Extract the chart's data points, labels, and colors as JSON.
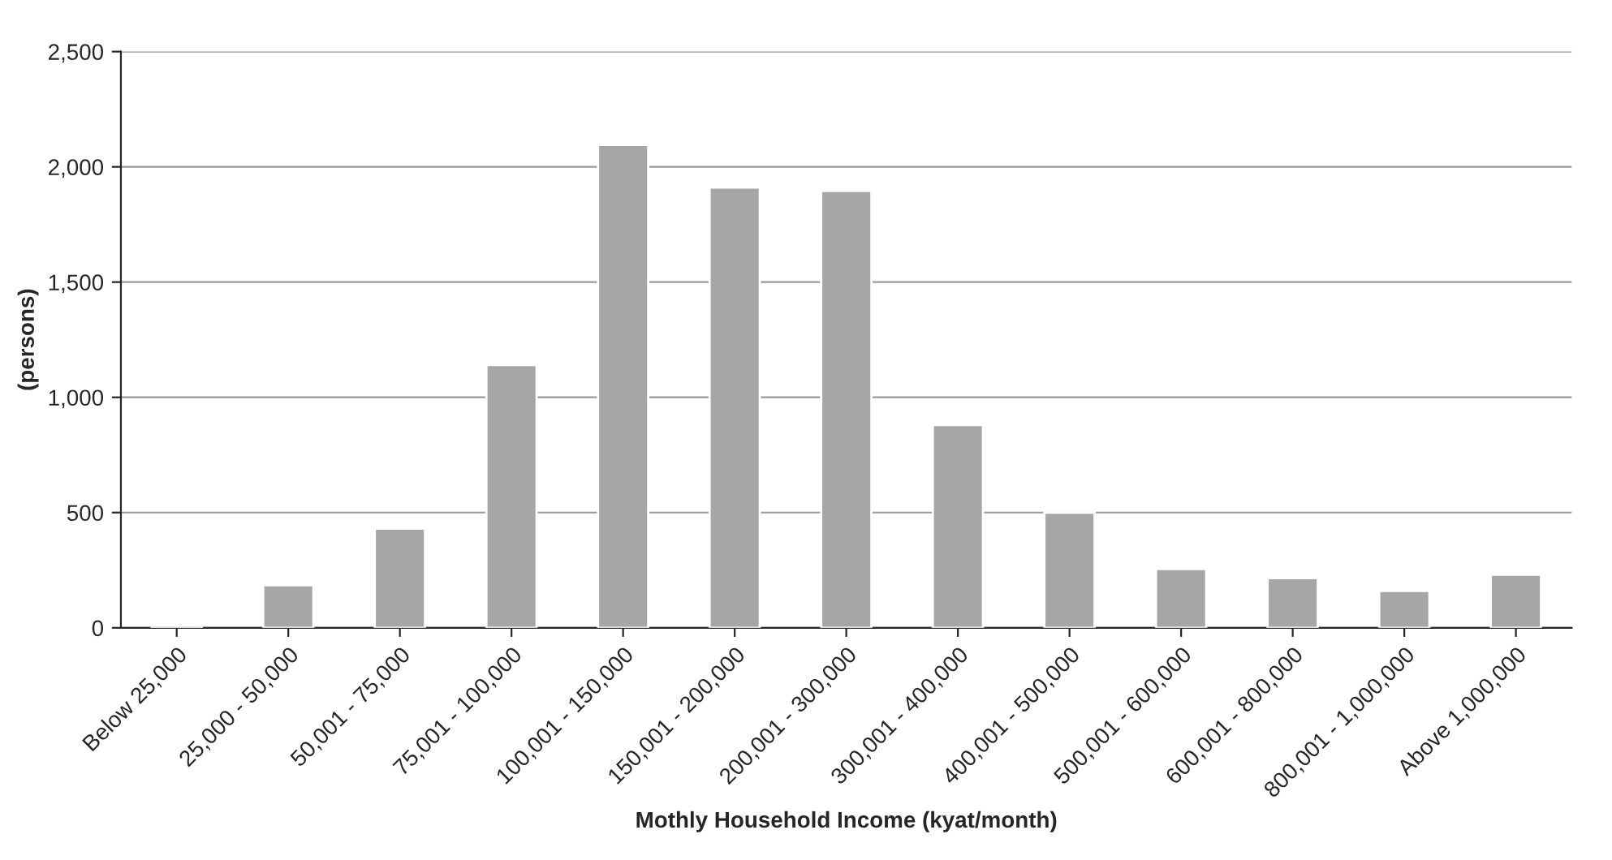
{
  "chart_data": {
    "type": "bar",
    "xlabel": "Mothly Household Income (kyat/month)",
    "ylabel": "(persons)",
    "categories": [
      "Below 25,000",
      "25,000 - 50,000",
      "50,001 - 75,000",
      "75,001 - 100,000",
      "100,001 - 150,000",
      "150,001 - 200,000",
      "200,001 - 300,000",
      "300,001 - 400,000",
      "400,001 - 500,000",
      "500,001 - 600,000",
      "600,001 - 800,000",
      "800,001 - 1,000,000",
      "Above 1,000,000"
    ],
    "values": [
      10,
      185,
      430,
      1140,
      2095,
      1910,
      1895,
      880,
      500,
      255,
      215,
      160,
      230
    ],
    "color": "#a6a6a6",
    "ylim": [
      0,
      2500
    ],
    "yticks": [
      0,
      500,
      {
        "value": 1000,
        "label": "1,000"
      },
      {
        "value": 1500,
        "label": "1,500"
      },
      {
        "value": 2000,
        "label": "2,000"
      },
      {
        "value": 2500,
        "label": "2,500"
      }
    ],
    "grid": "y"
  }
}
